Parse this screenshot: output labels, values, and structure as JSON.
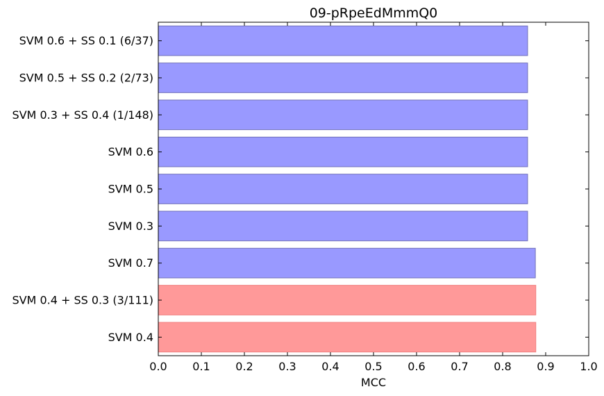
{
  "chart_data": {
    "type": "bar",
    "orientation": "horizontal",
    "title": "09-pRpeEdMmmQ0",
    "xlabel": "MCC",
    "ylabel": "",
    "xlim": [
      0.0,
      1.0
    ],
    "xticks": [
      "0.0",
      "0.1",
      "0.2",
      "0.3",
      "0.4",
      "0.5",
      "0.6",
      "0.7",
      "0.8",
      "0.9",
      "1.0"
    ],
    "grid": false,
    "categories": [
      "SVM 0.6 + SS 0.1 (6/37)",
      "SVM 0.5 + SS 0.2 (2/73)",
      "SVM 0.3 + SS 0.4 (1/148)",
      "SVM 0.6",
      "SVM 0.5",
      "SVM 0.3",
      "SVM 0.7",
      "SVM 0.4 + SS 0.3 (3/111)",
      "SVM 0.4"
    ],
    "values": [
      0.858,
      0.858,
      0.858,
      0.858,
      0.858,
      0.858,
      0.876,
      0.877,
      0.877
    ],
    "colors": [
      "#9999ff",
      "#9999ff",
      "#9999ff",
      "#9999ff",
      "#9999ff",
      "#9999ff",
      "#9999ff",
      "#ff9999",
      "#ff9999"
    ],
    "edge_colors": [
      "#7070b8",
      "#7070b8",
      "#7070b8",
      "#7070b8",
      "#7070b8",
      "#7070b8",
      "#7070b8",
      "#f08080",
      "#f08080"
    ]
  }
}
